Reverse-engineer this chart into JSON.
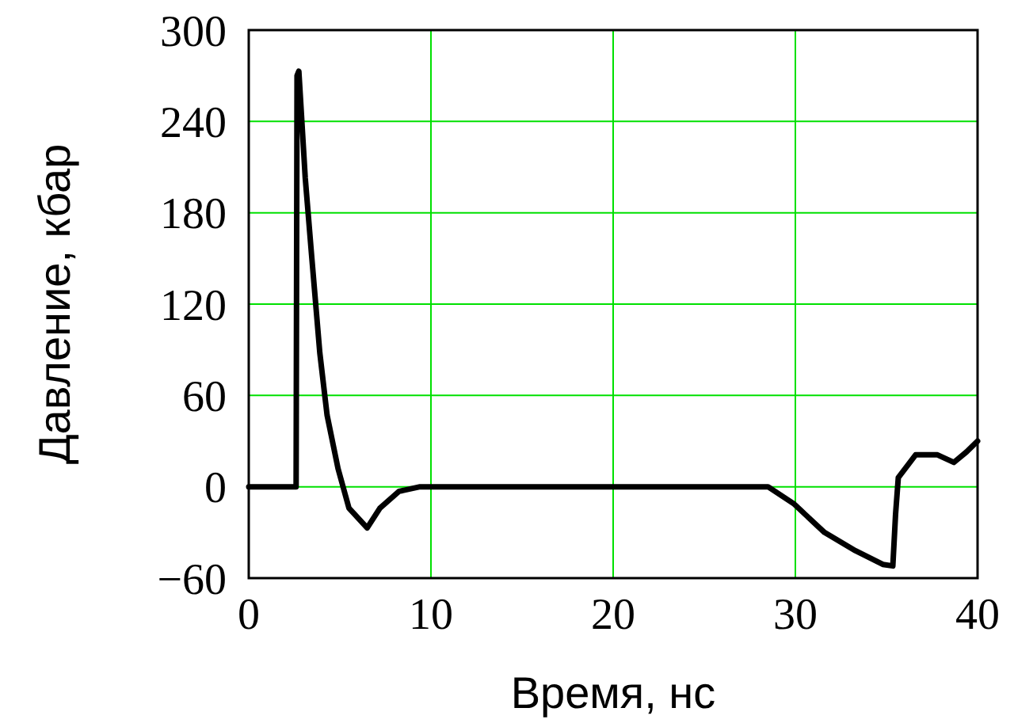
{
  "chart_data": {
    "type": "line",
    "xlabel": "Время, нс",
    "ylabel": "Давление, кбар",
    "xlim": [
      0,
      40
    ],
    "ylim": [
      -60,
      300
    ],
    "xticks": [
      0,
      10,
      20,
      30,
      40
    ],
    "yticks": [
      {
        "value": -60,
        "label": "−60"
      },
      0,
      60,
      120,
      180,
      240,
      300
    ],
    "grid": true,
    "series": [
      {
        "color": "#000000",
        "x": [
          0,
          2.6,
          2.65,
          2.75,
          3.1,
          3.45,
          3.9,
          4.3,
          4.9,
          5.5,
          6.5,
          7.2,
          8.25,
          9.4,
          20,
          28.5,
          29.9,
          31.6,
          33.3,
          34.8,
          35.35,
          35.5,
          35.65,
          36.6,
          37.8,
          38.7,
          39.4,
          40
        ],
        "values": [
          0,
          0,
          270,
          273,
          203,
          152,
          88,
          47,
          12,
          -14,
          -27,
          -14,
          -3,
          0,
          0,
          0,
          -11,
          -30,
          -42,
          -51,
          -52,
          -18,
          6,
          21,
          21,
          16,
          23,
          30
        ]
      }
    ]
  }
}
